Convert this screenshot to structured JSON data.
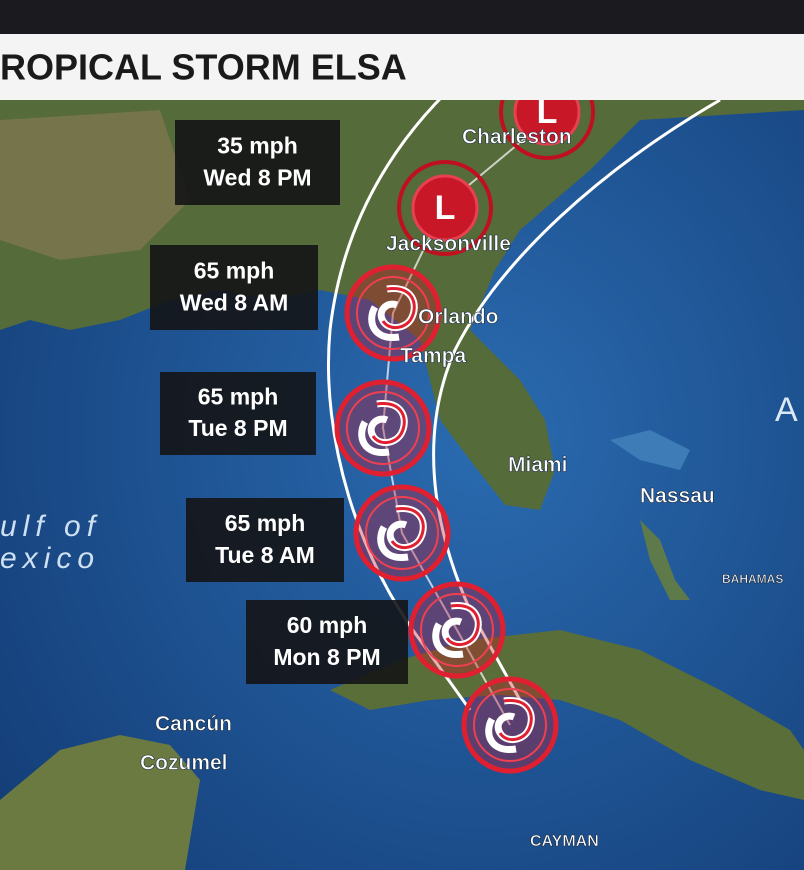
{
  "header": {
    "title": "ROPICAL STORM ELSA"
  },
  "forecast": [
    {
      "speed": "35 mph",
      "time": "Wed 8 PM"
    },
    {
      "speed": "65 mph",
      "time": "Wed 8 AM"
    },
    {
      "speed": "65 mph",
      "time": "Tue 8 PM"
    },
    {
      "speed": "65 mph",
      "time": "Tue 8 AM"
    },
    {
      "speed": "60 mph",
      "time": "Mon 8 PM"
    }
  ],
  "places": [
    "Charleston",
    "Jacksonville",
    "Orlando",
    "Tampa",
    "Miami",
    "Nassau",
    "Cancún",
    "Cozumel",
    "BAHAMAS",
    "CAYMAN"
  ],
  "water": [
    "ulf of",
    "exico"
  ],
  "edge_label": "A"
}
